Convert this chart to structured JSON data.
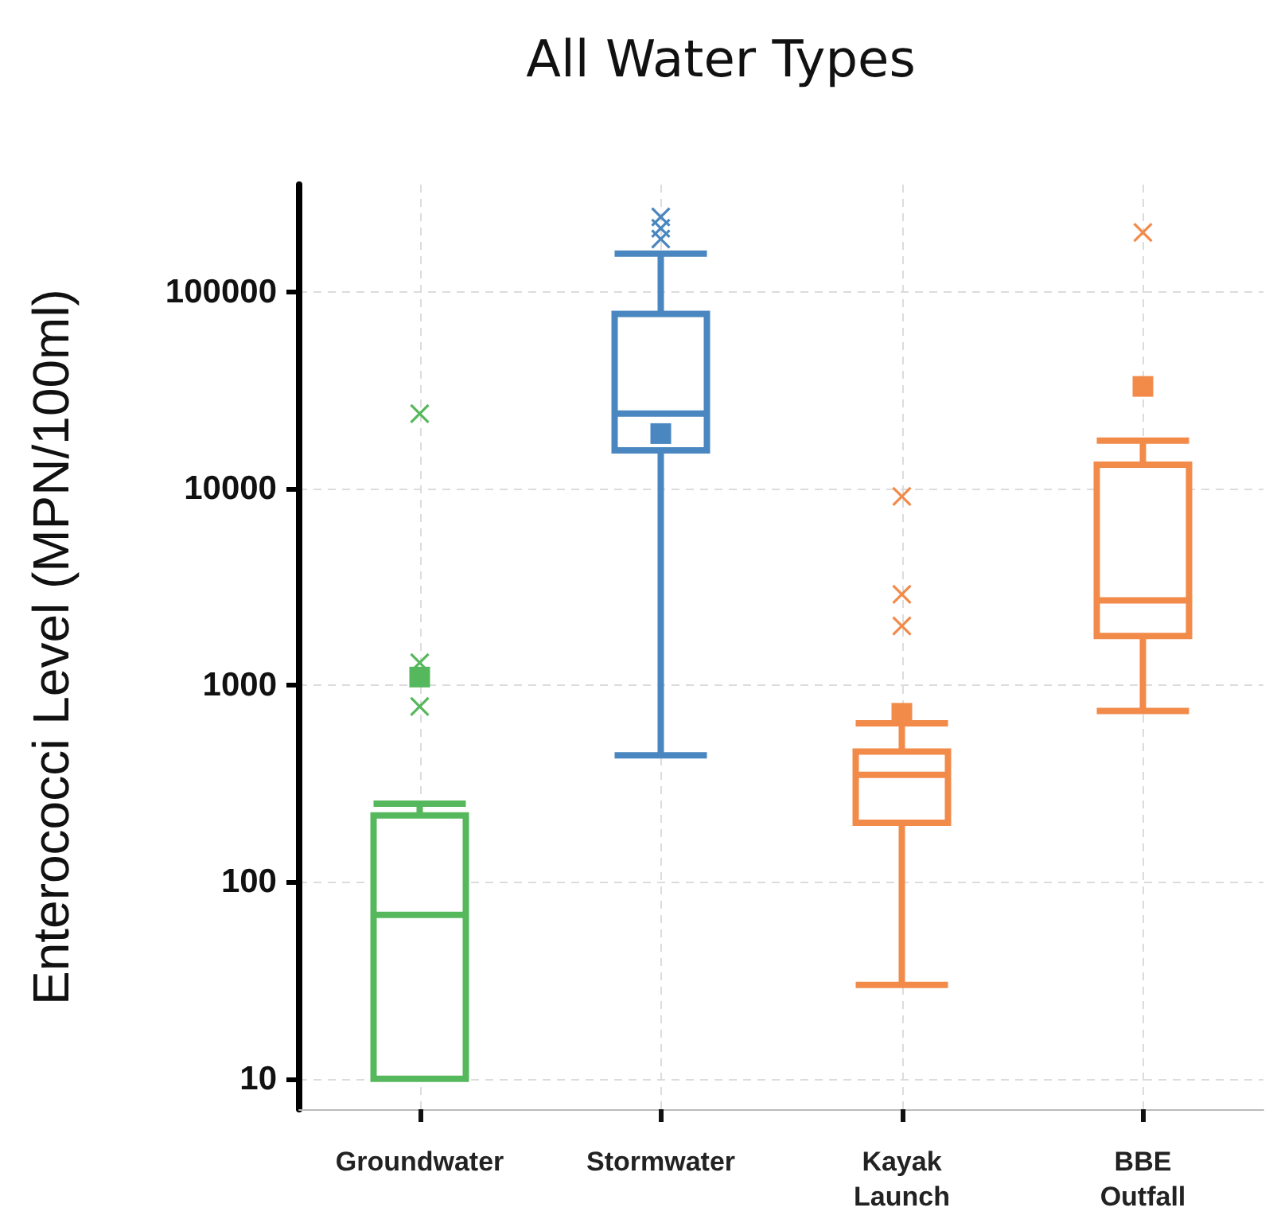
{
  "chart_data": {
    "type": "box",
    "title": "All Water Types",
    "ylabel": "Enterococci Level (MPN/100ml)",
    "categories": [
      "Groundwater",
      "Stormwater",
      "Kayak Launch",
      "BBE Outfall"
    ],
    "colors": [
      "#56b85c",
      "#4a86c0",
      "#f28a4a",
      "#f28a4a"
    ],
    "boxes": [
      {
        "low": 10,
        "q1": 10,
        "median": 68,
        "q3": 218,
        "high": 250,
        "mean": 1100,
        "outliers": [
          24000,
          1300,
          780
        ]
      },
      {
        "low": 440,
        "q1": 15600,
        "median": 24000,
        "q3": 77000,
        "high": 156000,
        "mean": 19000,
        "outliers": [
          240000,
          210000,
          185000
        ]
      },
      {
        "low": 30,
        "q1": 200,
        "median": 350,
        "q3": 460,
        "high": 640,
        "mean": 720,
        "outliers": [
          9100,
          2900,
          2000
        ]
      },
      {
        "low": 740,
        "q1": 1780,
        "median": 2700,
        "q3": 13200,
        "high": 17500,
        "mean": 33000,
        "outliers": [
          200000
        ]
      }
    ],
    "log": true,
    "ylim": [
      7,
      350000
    ],
    "yticks": [
      10,
      100,
      1000,
      10000,
      100000
    ],
    "grid": true,
    "marker": "cross"
  }
}
